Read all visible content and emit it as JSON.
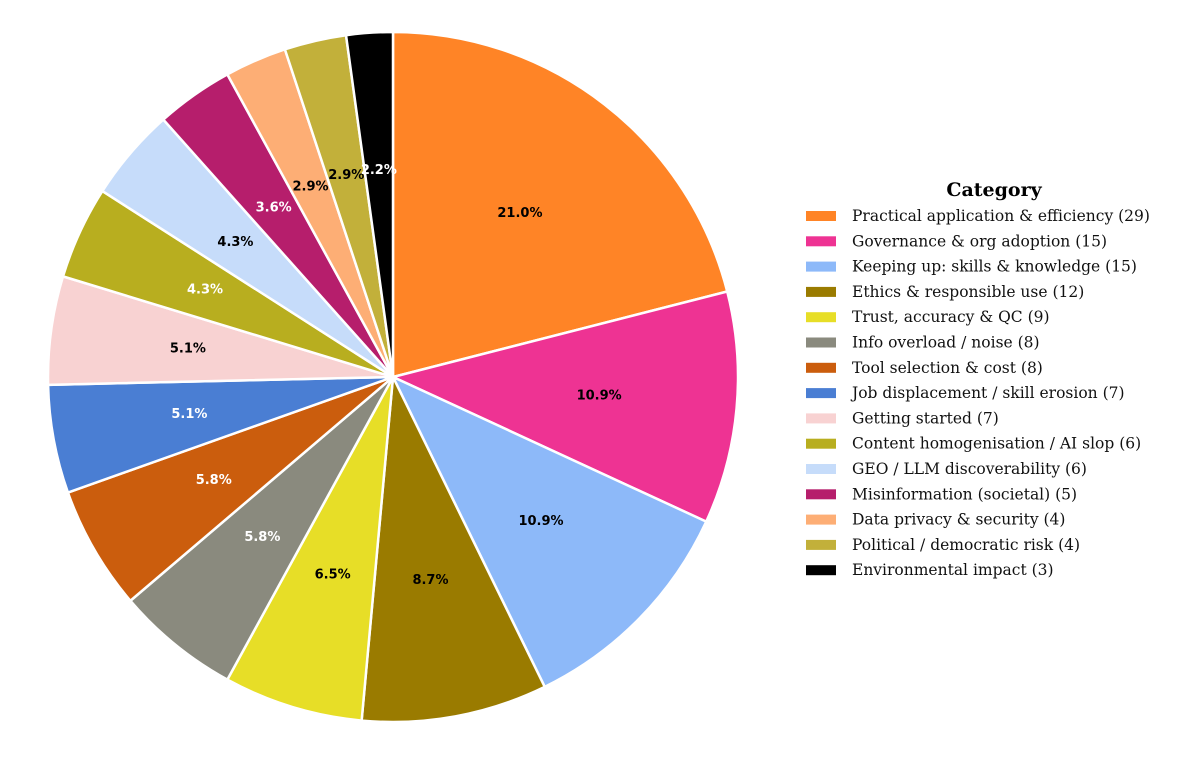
{
  "chart_data": {
    "type": "pie",
    "legend_title": "Category",
    "legend_position": "right",
    "start_angle": "top, clockwise",
    "slices": [
      {
        "label": "Practical application & efficiency",
        "count": 29,
        "pct_label": "21.0%",
        "color": "#FF8426",
        "label_color": "#000000"
      },
      {
        "label": "Governance & org adoption",
        "count": 15,
        "pct_label": "10.9%",
        "color": "#EE3393",
        "label_color": "#000000"
      },
      {
        "label": "Keeping up: skills & knowledge",
        "count": 15,
        "pct_label": "10.9%",
        "color": "#8DB9F9",
        "label_color": "#000000"
      },
      {
        "label": "Ethics & responsible use",
        "count": 12,
        "pct_label": "8.7%",
        "color": "#9A7B00",
        "label_color": "#000000"
      },
      {
        "label": "Trust, accuracy & QC",
        "count": 9,
        "pct_label": "6.5%",
        "color": "#E7DE27",
        "label_color": "#000000"
      },
      {
        "label": "Info overload / noise",
        "count": 8,
        "pct_label": "5.8%",
        "color": "#8A8A7E",
        "label_color": "#FFFFFF"
      },
      {
        "label": "Tool selection & cost",
        "count": 8,
        "pct_label": "5.8%",
        "color": "#CB5D0D",
        "label_color": "#FFFFFF"
      },
      {
        "label": "Job displacement / skill erosion",
        "count": 7,
        "pct_label": "5.1%",
        "color": "#4A7ED3",
        "label_color": "#FFFFFF"
      },
      {
        "label": "Getting started",
        "count": 7,
        "pct_label": "5.1%",
        "color": "#F8D2D2",
        "label_color": "#000000"
      },
      {
        "label": "Content homogenisation / AI slop",
        "count": 6,
        "pct_label": "4.3%",
        "color": "#B8AE1F",
        "label_color": "#FFFFFF"
      },
      {
        "label": "GEO / LLM discoverability",
        "count": 6,
        "pct_label": "4.3%",
        "color": "#C6DCFA",
        "label_color": "#000000"
      },
      {
        "label": "Misinformation (societal)",
        "count": 5,
        "pct_label": "3.6%",
        "color": "#B61E6C",
        "label_color": "#FFFFFF"
      },
      {
        "label": "Data privacy & security",
        "count": 4,
        "pct_label": "2.9%",
        "color": "#FDAE75",
        "label_color": "#000000"
      },
      {
        "label": "Political / democratic risk",
        "count": 4,
        "pct_label": "2.9%",
        "color": "#C2B03A",
        "label_color": "#000000"
      },
      {
        "label": "Environmental impact",
        "count": 3,
        "pct_label": "2.2%",
        "color": "#000000",
        "label_color": "#FFFFFF"
      }
    ]
  }
}
